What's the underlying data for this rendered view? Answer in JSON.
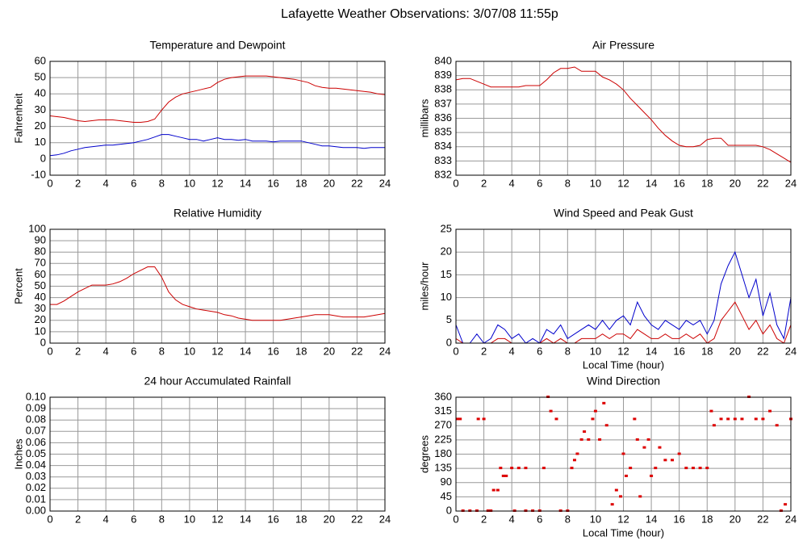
{
  "title": "Lafayette Weather Observations: 3/07/08 11:55p",
  "chart_data": [
    {
      "type": "line",
      "title": "Temperature and Dewpoint",
      "ylabel": "Fahrenheit",
      "xlim": [
        0,
        24
      ],
      "xticks": [
        0,
        2,
        4,
        6,
        8,
        10,
        12,
        14,
        16,
        18,
        20,
        22,
        24
      ],
      "ylim": [
        -10,
        60
      ],
      "yticks": [
        -10,
        0,
        10,
        20,
        30,
        40,
        50,
        60
      ],
      "grid": true,
      "x": [
        0,
        0.5,
        1,
        1.5,
        2,
        2.5,
        3,
        3.5,
        4,
        4.5,
        5,
        5.5,
        6,
        6.5,
        7,
        7.5,
        8,
        8.5,
        9,
        9.5,
        10,
        10.5,
        11,
        11.5,
        12,
        12.5,
        13,
        13.5,
        14,
        14.5,
        15,
        15.5,
        16,
        16.5,
        17,
        17.5,
        18,
        18.5,
        19,
        19.5,
        20,
        20.5,
        21,
        21.5,
        22,
        22.5,
        23,
        23.5,
        24
      ],
      "series": [
        {
          "color": "#cc0000",
          "values": [
            26.5,
            26,
            25.5,
            24.5,
            23.5,
            23,
            23.5,
            24,
            24,
            24,
            23.5,
            23,
            22.5,
            22.5,
            23,
            24.5,
            30,
            35,
            38,
            40,
            41,
            42,
            43,
            44,
            47,
            49,
            50,
            50.5,
            51,
            51,
            51,
            51,
            50.5,
            50,
            49.5,
            49,
            48,
            47,
            45,
            44,
            43.5,
            43.5,
            43,
            42.5,
            42,
            41.5,
            41,
            40,
            39.5
          ]
        },
        {
          "color": "#0000cc",
          "values": [
            2,
            2.5,
            3.5,
            5,
            6,
            7,
            7.5,
            8,
            8.5,
            8.5,
            9,
            9.5,
            10,
            11,
            12,
            13.5,
            15,
            15,
            14,
            13,
            12,
            12,
            11,
            12,
            13,
            12,
            12,
            11.5,
            12,
            11,
            11,
            11,
            10.5,
            11,
            11,
            11,
            11,
            10,
            9,
            8,
            8,
            7.5,
            7,
            7,
            7,
            6.5,
            7,
            7,
            7
          ]
        }
      ]
    },
    {
      "type": "line",
      "title": "Air Pressure",
      "ylabel": "millibars",
      "xlim": [
        0,
        24
      ],
      "xticks": [
        0,
        2,
        4,
        6,
        8,
        10,
        12,
        14,
        16,
        18,
        20,
        22,
        24
      ],
      "ylim": [
        832,
        840
      ],
      "yticks": [
        832,
        833,
        834,
        835,
        836,
        837,
        838,
        839,
        840
      ],
      "grid": true,
      "x": [
        0,
        0.5,
        1,
        1.5,
        2,
        2.5,
        3,
        3.5,
        4,
        4.5,
        5,
        5.5,
        6,
        6.5,
        7,
        7.5,
        8,
        8.5,
        9,
        9.5,
        10,
        10.5,
        11,
        11.5,
        12,
        12.5,
        13,
        13.5,
        14,
        14.5,
        15,
        15.5,
        16,
        16.5,
        17,
        17.5,
        18,
        18.5,
        19,
        19.5,
        20,
        20.5,
        21,
        21.5,
        22,
        22.5,
        23,
        23.5,
        24
      ],
      "series": [
        {
          "color": "#cc0000",
          "values": [
            838.7,
            838.8,
            838.8,
            838.6,
            838.4,
            838.2,
            838.2,
            838.2,
            838.2,
            838.2,
            838.3,
            838.3,
            838.3,
            838.7,
            839.2,
            839.5,
            839.5,
            839.6,
            839.3,
            839.3,
            839.3,
            838.9,
            838.7,
            838.4,
            838.0,
            837.4,
            836.9,
            836.4,
            835.9,
            835.3,
            834.8,
            834.4,
            834.1,
            834.0,
            834.0,
            834.1,
            834.5,
            834.6,
            834.6,
            834.1,
            834.1,
            834.1,
            834.1,
            834.1,
            834.0,
            833.8,
            833.5,
            833.2,
            832.9
          ]
        }
      ]
    },
    {
      "type": "line",
      "title": "Relative Humidity",
      "ylabel": "Percent",
      "xlim": [
        0,
        24
      ],
      "xticks": [
        0,
        2,
        4,
        6,
        8,
        10,
        12,
        14,
        16,
        18,
        20,
        22,
        24
      ],
      "ylim": [
        0,
        100
      ],
      "yticks": [
        0,
        10,
        20,
        30,
        40,
        50,
        60,
        70,
        80,
        90,
        100
      ],
      "grid": true,
      "x": [
        0,
        0.5,
        1,
        1.5,
        2,
        2.5,
        3,
        3.5,
        4,
        4.5,
        5,
        5.5,
        6,
        6.5,
        7,
        7.5,
        8,
        8.5,
        9,
        9.5,
        10,
        10.5,
        11,
        11.5,
        12,
        12.5,
        13,
        13.5,
        14,
        14.5,
        15,
        15.5,
        16,
        16.5,
        17,
        17.5,
        18,
        18.5,
        19,
        19.5,
        20,
        20.5,
        21,
        21.5,
        22,
        22.5,
        23,
        23.5,
        24
      ],
      "series": [
        {
          "color": "#cc0000",
          "values": [
            34,
            34,
            37,
            41,
            45,
            48,
            51,
            51,
            51,
            52,
            54,
            57,
            61,
            64,
            67,
            67,
            58,
            45,
            38,
            34,
            32,
            30,
            29,
            28,
            27,
            25,
            24,
            22,
            21,
            20,
            20,
            20,
            20,
            20,
            21,
            22,
            23,
            24,
            25,
            25,
            25,
            24,
            23,
            23,
            23,
            23,
            24,
            25,
            26
          ]
        }
      ]
    },
    {
      "type": "line",
      "title": "Wind Speed and Peak Gust",
      "ylabel": "miles/hour",
      "xlabel": "Local Time (hour)",
      "xlim": [
        0,
        24
      ],
      "xticks": [
        0,
        2,
        4,
        6,
        8,
        10,
        12,
        14,
        16,
        18,
        20,
        22,
        24
      ],
      "ylim": [
        0,
        25
      ],
      "yticks": [
        0,
        5,
        10,
        15,
        20,
        25
      ],
      "grid": true,
      "x": [
        0,
        0.5,
        1,
        1.5,
        2,
        2.5,
        3,
        3.5,
        4,
        4.5,
        5,
        5.5,
        6,
        6.5,
        7,
        7.5,
        8,
        8.5,
        9,
        9.5,
        10,
        10.5,
        11,
        11.5,
        12,
        12.5,
        13,
        13.5,
        14,
        14.5,
        15,
        15.5,
        16,
        16.5,
        17,
        17.5,
        18,
        18.5,
        19,
        19.5,
        20,
        20.5,
        21,
        21.5,
        22,
        22.5,
        23,
        23.5,
        24
      ],
      "series": [
        {
          "color": "#0000cc",
          "values": [
            4,
            0,
            0,
            2,
            0,
            1,
            4,
            3,
            1,
            2,
            0,
            1,
            0,
            3,
            2,
            4,
            1,
            2,
            3,
            4,
            3,
            5,
            3,
            5,
            6,
            4,
            9,
            6,
            4,
            3,
            5,
            4,
            3,
            5,
            4,
            5,
            2,
            5,
            13,
            17,
            20,
            15,
            10,
            14,
            6,
            11,
            4,
            1,
            10
          ]
        },
        {
          "color": "#cc0000",
          "values": [
            1,
            0,
            0,
            0,
            0,
            0,
            1,
            1,
            0,
            0,
            0,
            0,
            0,
            1,
            0,
            1,
            0,
            0,
            1,
            1,
            1,
            2,
            1,
            2,
            2,
            1,
            3,
            2,
            1,
            1,
            2,
            1,
            1,
            2,
            1,
            2,
            0,
            1,
            5,
            7,
            9,
            6,
            3,
            5,
            2,
            4,
            1,
            0,
            4
          ]
        }
      ]
    },
    {
      "type": "line",
      "title": "24 hour Accumulated Rainfall",
      "ylabel": "Inches",
      "xlim": [
        0,
        24
      ],
      "xticks": [
        0,
        2,
        4,
        6,
        8,
        10,
        12,
        14,
        16,
        18,
        20,
        22,
        24
      ],
      "ylim": [
        0,
        0.1
      ],
      "yticks": [
        {
          "value": 0,
          "label": "0.00"
        },
        {
          "value": 0.01,
          "label": "0.01"
        },
        {
          "value": 0.02,
          "label": "0.02"
        },
        {
          "value": 0.03,
          "label": "0.03"
        },
        {
          "value": 0.04,
          "label": "0.04"
        },
        {
          "value": 0.05,
          "label": "0.05"
        },
        {
          "value": 0.06,
          "label": "0.06"
        },
        {
          "value": 0.07,
          "label": "0.07"
        },
        {
          "value": 0.08,
          "label": "0.08"
        },
        {
          "value": 0.09,
          "label": "0.09"
        },
        {
          "value": 0.1,
          "label": "0.10"
        }
      ],
      "grid": true,
      "x": [
        0,
        24
      ],
      "series": [
        {
          "color": "#cc0000",
          "values": [
            0,
            0
          ]
        }
      ]
    },
    {
      "type": "scatter",
      "title": "Wind Direction",
      "ylabel": "degrees",
      "xlabel": "Local Time (hour)",
      "xlim": [
        0,
        24
      ],
      "xticks": [
        0,
        2,
        4,
        6,
        8,
        10,
        12,
        14,
        16,
        18,
        20,
        22,
        24
      ],
      "ylim": [
        0,
        360
      ],
      "yticks": [
        0,
        45,
        90,
        135,
        180,
        225,
        270,
        315,
        360
      ],
      "grid": true,
      "color": "#dd0000",
      "x": [
        0.1,
        0.3,
        0.5,
        1,
        1.5,
        1.6,
        2,
        2.3,
        2.5,
        2.7,
        3,
        3.2,
        3.4,
        3.6,
        4,
        4.2,
        4.5,
        5,
        5,
        5.5,
        6,
        6.3,
        6.6,
        6.8,
        7.2,
        7.5,
        8,
        8.3,
        8.5,
        8.7,
        9,
        9.2,
        9.5,
        9.8,
        10,
        10.3,
        10.6,
        10.8,
        11.2,
        11.5,
        11.8,
        12,
        12.2,
        12.5,
        12.8,
        13,
        13.2,
        13.5,
        13.8,
        14,
        14.3,
        14.6,
        15,
        15.5,
        16,
        16.5,
        17,
        17.5,
        18,
        18.3,
        18.5,
        19,
        19.5,
        20,
        20.5,
        21,
        21.5,
        22,
        22.5,
        23,
        23.3,
        23.6,
        24
      ],
      "values": [
        290,
        290,
        0,
        0,
        0,
        290,
        290,
        0,
        0,
        65,
        65,
        135,
        110,
        110,
        135,
        0,
        135,
        0,
        135,
        0,
        0,
        135,
        360,
        315,
        290,
        0,
        0,
        135,
        160,
        180,
        225,
        250,
        225,
        290,
        315,
        225,
        340,
        270,
        20,
        65,
        45,
        180,
        110,
        135,
        290,
        225,
        45,
        200,
        225,
        110,
        135,
        200,
        160,
        160,
        180,
        135,
        135,
        135,
        135,
        315,
        270,
        290,
        290,
        290,
        290,
        360,
        290,
        290,
        315,
        270,
        0,
        20,
        290
      ]
    }
  ]
}
